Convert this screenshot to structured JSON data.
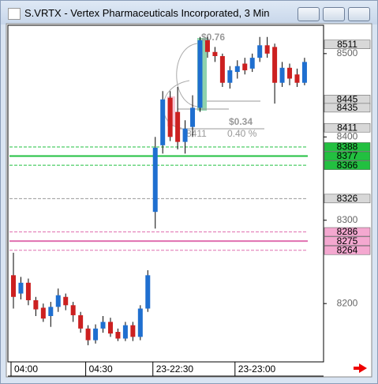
{
  "chart_data": {
    "type": "candlestick",
    "title": "S.VRTX - Vertex Pharmaceuticals Incorporated, 3 Min",
    "categories": [
      "04:00",
      null,
      null,
      null,
      null,
      null,
      null,
      null,
      null,
      null,
      "04:30",
      null,
      null,
      null,
      null,
      null,
      null,
      null,
      null,
      "23-22:30",
      null,
      null,
      null,
      null,
      null,
      null,
      null,
      null,
      null,
      null,
      "23-23:00",
      null,
      null,
      null,
      null,
      null,
      null,
      null,
      null,
      null
    ],
    "open": [
      8234,
      8212,
      8225,
      8204,
      8195,
      8185,
      8196,
      8208,
      8198,
      8186,
      8170,
      8156,
      8170,
      8178,
      8166,
      8158,
      8174,
      8160,
      8194,
      8310,
      8390,
      8447,
      8430,
      8394,
      8412,
      8435,
      8516,
      8502,
      8497,
      8465,
      8478,
      8488,
      8482,
      8495,
      8510,
      8508,
      8465,
      8483,
      8475,
      8465
    ],
    "high": [
      8261,
      8232,
      8230,
      8208,
      8200,
      8202,
      8218,
      8212,
      8202,
      8190,
      8174,
      8175,
      8185,
      8183,
      8170,
      8178,
      8178,
      8198,
      8240,
      8400,
      8455,
      8455,
      8460,
      8420,
      8450,
      8520,
      8520,
      8508,
      8500,
      8485,
      8492,
      8495,
      8500,
      8520,
      8520,
      8512,
      8490,
      8488,
      8482,
      8495
    ],
    "low": [
      8194,
      8205,
      8198,
      8185,
      8178,
      8172,
      8190,
      8192,
      8178,
      8165,
      8150,
      8152,
      8165,
      8160,
      8155,
      8155,
      8155,
      8156,
      8190,
      8290,
      8380,
      8395,
      8385,
      8380,
      8400,
      8430,
      8495,
      8490,
      8460,
      8458,
      8470,
      8475,
      8478,
      8490,
      8495,
      8440,
      8460,
      8462,
      8460,
      8462
    ],
    "close": [
      8208,
      8225,
      8204,
      8193,
      8182,
      8196,
      8210,
      8198,
      8186,
      8170,
      8156,
      8170,
      8178,
      8164,
      8158,
      8174,
      8160,
      8194,
      8234,
      8387,
      8445,
      8400,
      8394,
      8410,
      8435,
      8516,
      8502,
      8497,
      8465,
      8480,
      8485,
      8480,
      8495,
      8510,
      8500,
      8465,
      8483,
      8470,
      8465,
      8490
    ],
    "up_color": "#1f6fd0",
    "down_color": "#cc2020",
    "ylim": [
      8130,
      8534
    ],
    "yticks": [
      8200,
      8300,
      8400,
      8500
    ],
    "price_tags": [
      {
        "value": 8511,
        "color": "#d8d8d8"
      },
      {
        "value": 8445,
        "color": "#d8d8d8"
      },
      {
        "value": 8435,
        "color": "#d8d8d8"
      },
      {
        "value": 8411,
        "color": "#d8d8d8"
      },
      {
        "value": 8388,
        "color": "#22c040"
      },
      {
        "value": 8377,
        "color": "#22c040"
      },
      {
        "value": 8366,
        "color": "#22c040"
      },
      {
        "value": 8326,
        "color": "#d8d8d8"
      },
      {
        "value": 8286,
        "color": "#f4a8d0"
      },
      {
        "value": 8275,
        "color": "#f4a8d0"
      },
      {
        "value": 8264,
        "color": "#f4a8d0"
      }
    ],
    "levels": [
      {
        "value": 8388,
        "color": "#22c040",
        "style": "dashed"
      },
      {
        "value": 8377,
        "color": "#22c040",
        "style": "solid"
      },
      {
        "value": 8366,
        "color": "#22c040",
        "style": "dashed"
      },
      {
        "value": 8326,
        "color": "#999999",
        "style": "dashed"
      },
      {
        "value": 8286,
        "color": "#e070b0",
        "style": "dashed"
      },
      {
        "value": 8275,
        "color": "#e070b0",
        "style": "solid"
      },
      {
        "value": 8264,
        "color": "#e070b0",
        "style": "dashed"
      }
    ],
    "annotations": [
      "$0.76",
      "$0.34",
      "0.40 %",
      "8411"
    ]
  }
}
